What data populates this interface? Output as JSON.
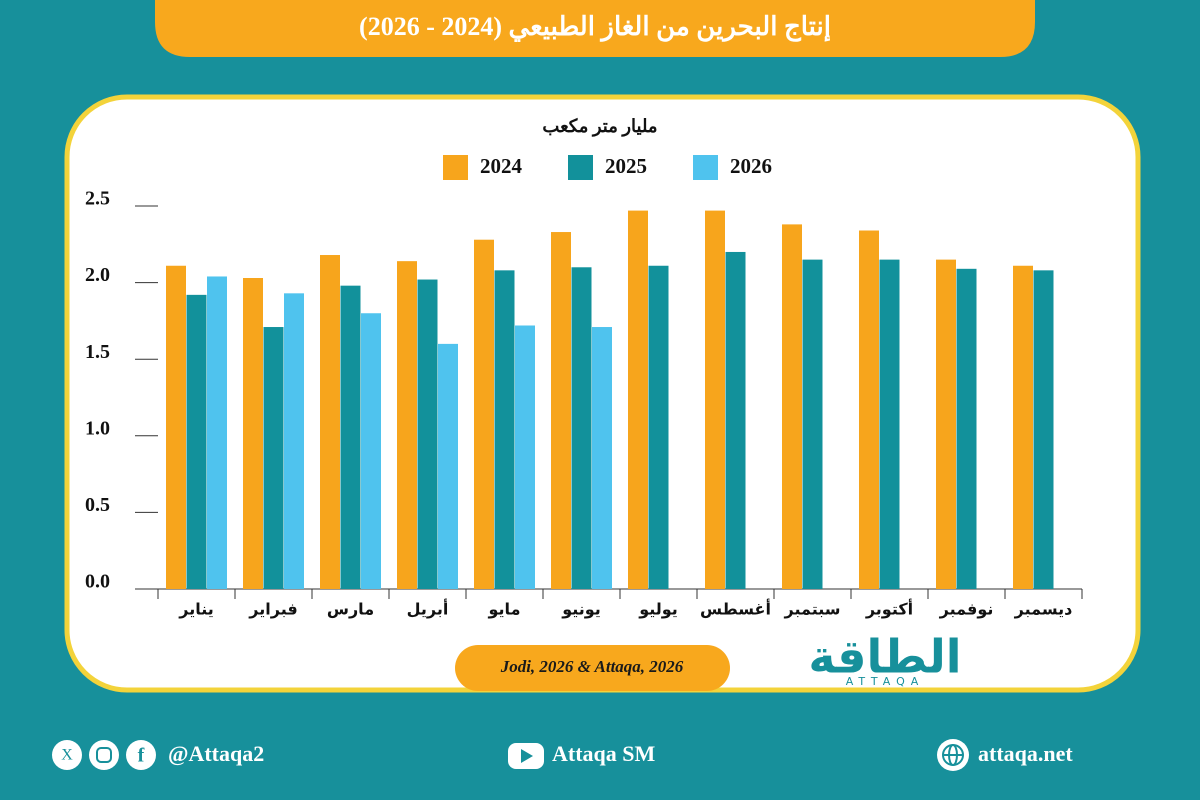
{
  "chart_data": {
    "type": "bar",
    "title": "إنتاج البحرين من الغاز الطبيعي (2024 - 2026)",
    "y_label": "مليار متر مكعب",
    "categories": [
      "يناير",
      "فبراير",
      "مارس",
      "أبريل",
      "مايو",
      "يونيو",
      "يوليو",
      "أغسطس",
      "سبتمبر",
      "أكتوبر",
      "نوفمبر",
      "ديسمبر"
    ],
    "series": [
      {
        "name": "2024",
        "color": "#f7a51c",
        "values": [
          2.11,
          2.03,
          2.18,
          2.14,
          2.28,
          2.33,
          2.47,
          2.47,
          2.38,
          2.34,
          2.15,
          2.11
        ]
      },
      {
        "name": "2025",
        "color": "#12919b",
        "values": [
          1.92,
          1.71,
          1.98,
          2.02,
          2.08,
          2.1,
          2.11,
          2.2,
          2.15,
          2.15,
          2.09,
          2.08
        ]
      },
      {
        "name": "2026",
        "color": "#4fc3ee",
        "values": [
          2.04,
          1.93,
          1.8,
          1.6,
          1.72,
          1.71,
          null,
          null,
          null,
          null,
          null,
          null
        ]
      }
    ],
    "ylim": [
      0,
      2.5
    ],
    "yticks": [
      {
        "value": 0,
        "label": "0.0"
      },
      {
        "value": 0.5,
        "label": "0.5"
      },
      {
        "value": 1,
        "label": "1.0"
      },
      1.5,
      {
        "value": 2,
        "label": "2.0"
      },
      2.5
    ],
    "grid": false,
    "legend": "top",
    "source": "Jodi, 2026 & Attaqa, 2026"
  },
  "branding": {
    "logo": "الطاقة",
    "logo_sub": "ATTAQA"
  },
  "footer": {
    "social": "@Attaqa2",
    "youtube": "Attaqa SM",
    "website": "attaqa.net"
  }
}
